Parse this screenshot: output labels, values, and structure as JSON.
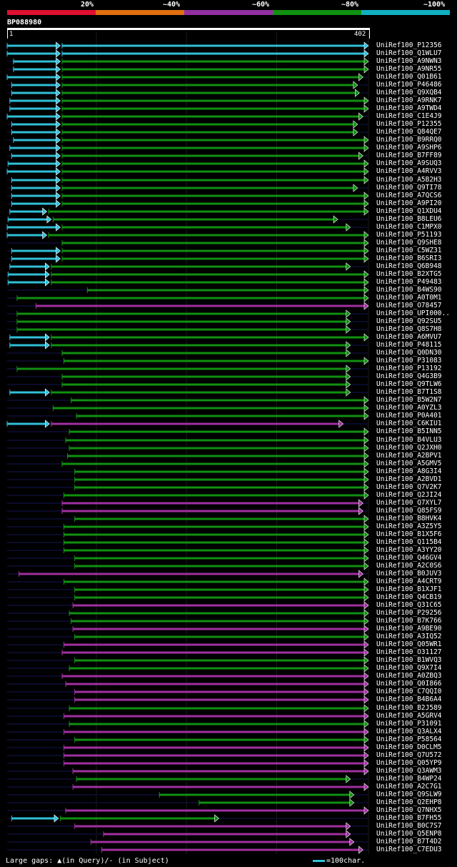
{
  "legend": {
    "segments": [
      {
        "label": "20%",
        "color": "#e01030"
      },
      {
        "label": "~40%",
        "color": "#e07010"
      },
      {
        "label": "~60%",
        "color": "#9030a0"
      },
      {
        "label": "~80%",
        "color": "#109010"
      },
      {
        "label": "~100%",
        "color": "#10b0c0"
      }
    ]
  },
  "query": {
    "id": "BP088980",
    "start_label": "1",
    "end_label": "402",
    "length": 402
  },
  "colors": {
    "identity100": "#30c0d8",
    "identity80": "#109010",
    "identity60": "#a030a0",
    "gap": "#0a0a2a",
    "markerYellow": "#f0f080"
  },
  "hits": [
    {
      "name": "UniRef100_P12356",
      "segs": [
        [
          1,
          60,
          "c"
        ],
        [
          62,
          402,
          "c"
        ]
      ]
    },
    {
      "name": "UniRef100_Q1WLU7",
      "segs": [
        [
          1,
          60,
          "c"
        ],
        [
          62,
          402,
          "c"
        ]
      ]
    },
    {
      "name": "UniRef100_A9NWN3",
      "segs": [
        [
          8,
          60,
          "c"
        ],
        [
          62,
          402,
          "g"
        ]
      ]
    },
    {
      "name": "UniRef100_A9NR55",
      "segs": [
        [
          8,
          60,
          "c"
        ],
        [
          62,
          402,
          "g"
        ]
      ]
    },
    {
      "name": "UniRef100_Q01B61",
      "segs": [
        [
          1,
          60,
          "c"
        ],
        [
          62,
          396,
          "g"
        ]
      ]
    },
    {
      "name": "UniRef100_P46486",
      "segs": [
        [
          6,
          60,
          "c"
        ],
        [
          62,
          390,
          "g"
        ]
      ]
    },
    {
      "name": "UniRef100_Q9XQB4",
      "segs": [
        [
          6,
          60,
          "c"
        ],
        [
          62,
          392,
          "g"
        ]
      ]
    },
    {
      "name": "UniRef100_A9RNK7",
      "segs": [
        [
          4,
          60,
          "c"
        ],
        [
          62,
          402,
          "g"
        ]
      ]
    },
    {
      "name": "UniRef100_A9TWD4",
      "segs": [
        [
          4,
          60,
          "c"
        ],
        [
          62,
          402,
          "g"
        ]
      ]
    },
    {
      "name": "UniRef100_C1E4J9",
      "segs": [
        [
          1,
          60,
          "c"
        ],
        [
          62,
          396,
          "g"
        ]
      ]
    },
    {
      "name": "UniRef100_P12355",
      "segs": [
        [
          6,
          60,
          "c"
        ],
        [
          62,
          390,
          "g"
        ]
      ]
    },
    {
      "name": "UniRef100_Q84QE7",
      "segs": [
        [
          6,
          60,
          "c"
        ],
        [
          62,
          390,
          "g"
        ]
      ]
    },
    {
      "name": "UniRef100_B9RRQ0",
      "segs": [
        [
          8,
          60,
          "c"
        ],
        [
          62,
          402,
          "g"
        ]
      ]
    },
    {
      "name": "UniRef100_A9SHP6",
      "segs": [
        [
          4,
          60,
          "c"
        ],
        [
          62,
          402,
          "g"
        ]
      ]
    },
    {
      "name": "UniRef100_B7FF89",
      "segs": [
        [
          6,
          60,
          "c"
        ],
        [
          62,
          396,
          "g"
        ]
      ]
    },
    {
      "name": "UniRef100_A9SUQ3",
      "segs": [
        [
          2,
          60,
          "c"
        ],
        [
          62,
          402,
          "g"
        ]
      ]
    },
    {
      "name": "UniRef100_A4RVV3",
      "segs": [
        [
          1,
          60,
          "c"
        ],
        [
          62,
          402,
          "g"
        ]
      ]
    },
    {
      "name": "UniRef100_A5B2H3",
      "segs": [
        [
          6,
          60,
          "c"
        ],
        [
          62,
          402,
          "g"
        ]
      ]
    },
    {
      "name": "UniRef100_Q9TI78",
      "segs": [
        [
          6,
          60,
          "c"
        ],
        [
          62,
          390,
          "g"
        ]
      ]
    },
    {
      "name": "UniRef100_A7QCS6",
      "segs": [
        [
          6,
          60,
          "c"
        ],
        [
          62,
          402,
          "g"
        ]
      ]
    },
    {
      "name": "UniRef100_A9PI20",
      "segs": [
        [
          6,
          60,
          "c"
        ],
        [
          62,
          402,
          "g"
        ]
      ]
    },
    {
      "name": "UniRef100_Q1XDU4",
      "segs": [
        [
          4,
          45,
          "c"
        ],
        [
          47,
          402,
          "g"
        ]
      ]
    },
    {
      "name": "UniRef100_B8LEU6",
      "segs": [
        [
          2,
          50,
          "c"
        ],
        [
          52,
          368,
          "g"
        ]
      ]
    },
    {
      "name": "UniRef100_C1MPX0",
      "segs": [
        [
          1,
          60,
          "c"
        ],
        [
          62,
          382,
          "g"
        ]
      ]
    },
    {
      "name": "UniRef100_P51193",
      "segs": [
        [
          1,
          45,
          "c"
        ],
        [
          47,
          402,
          "g"
        ]
      ]
    },
    {
      "name": "UniRef100_Q9SHE8",
      "segs": [
        [
          62,
          402,
          "g"
        ]
      ]
    },
    {
      "name": "UniRef100_C5WZ31",
      "segs": [
        [
          6,
          60,
          "c"
        ],
        [
          62,
          402,
          "g"
        ]
      ]
    },
    {
      "name": "UniRef100_B6SRI3",
      "segs": [
        [
          6,
          60,
          "c"
        ],
        [
          62,
          402,
          "g"
        ]
      ]
    },
    {
      "name": "UniRef100_Q6B948",
      "segs": [
        [
          4,
          48,
          "c"
        ],
        [
          50,
          382,
          "g"
        ]
      ]
    },
    {
      "name": "UniRef100_B2XTG5",
      "segs": [
        [
          2,
          48,
          "c"
        ],
        [
          50,
          402,
          "g"
        ]
      ]
    },
    {
      "name": "UniRef100_P49483",
      "segs": [
        [
          2,
          48,
          "c"
        ],
        [
          50,
          402,
          "g"
        ]
      ]
    },
    {
      "name": "UniRef100_B4WS90",
      "segs": [
        [
          90,
          402,
          "g"
        ]
      ]
    },
    {
      "name": "UniRef100_A0T0M1",
      "segs": [
        [
          12,
          402,
          "g"
        ]
      ]
    },
    {
      "name": "UniRef100_O78457",
      "segs": [
        [
          33,
          402,
          "m"
        ]
      ]
    },
    {
      "name": "UniRef100_UPI000..",
      "segs": [
        [
          12,
          382,
          "g"
        ]
      ]
    },
    {
      "name": "UniRef100_Q92SU5",
      "segs": [
        [
          12,
          382,
          "g"
        ]
      ]
    },
    {
      "name": "UniRef100_Q8S7H8",
      "segs": [
        [
          12,
          382,
          "g"
        ]
      ]
    },
    {
      "name": "UniRef100_A6MVU7",
      "segs": [
        [
          4,
          48,
          "c"
        ],
        [
          50,
          402,
          "g"
        ]
      ]
    },
    {
      "name": "UniRef100_P48115",
      "segs": [
        [
          4,
          48,
          "c"
        ],
        [
          50,
          382,
          "g"
        ]
      ]
    },
    {
      "name": "UniRef100_Q0DN30",
      "segs": [
        [
          62,
          382,
          "g"
        ]
      ]
    },
    {
      "name": "UniRef100_P31083",
      "segs": [
        [
          64,
          402,
          "g"
        ]
      ]
    },
    {
      "name": "UniRef100_P13192",
      "segs": [
        [
          12,
          382,
          "g"
        ]
      ]
    },
    {
      "name": "UniRef100_Q4G3B9",
      "segs": [
        [
          62,
          382,
          "g"
        ]
      ]
    },
    {
      "name": "UniRef100_Q9TLW6",
      "segs": [
        [
          62,
          382,
          "g"
        ]
      ]
    },
    {
      "name": "UniRef100_B7T1S8",
      "segs": [
        [
          4,
          48,
          "c"
        ],
        [
          50,
          382,
          "g"
        ]
      ]
    },
    {
      "name": "UniRef100_B5W2N7",
      "segs": [
        [
          72,
          402,
          "g"
        ]
      ]
    },
    {
      "name": "UniRef100_A0YZL3",
      "segs": [
        [
          52,
          402,
          "g"
        ]
      ]
    },
    {
      "name": "UniRef100_P0A401",
      "segs": [
        [
          78,
          402,
          "g"
        ]
      ]
    },
    {
      "name": "UniRef100_C6KIU1",
      "segs": [
        [
          1,
          48,
          "c"
        ],
        [
          50,
          374,
          "m"
        ]
      ]
    },
    {
      "name": "UniRef100_B5INN5",
      "segs": [
        [
          70,
          402,
          "g"
        ]
      ]
    },
    {
      "name": "UniRef100_B4VLU3",
      "segs": [
        [
          66,
          402,
          "g"
        ]
      ]
    },
    {
      "name": "UniRef100_Q2JXH0",
      "segs": [
        [
          70,
          402,
          "g"
        ]
      ]
    },
    {
      "name": "UniRef100_A2BPV1",
      "segs": [
        [
          68,
          402,
          "g"
        ]
      ]
    },
    {
      "name": "UniRef100_A5GMV5",
      "segs": [
        [
          62,
          402,
          "g"
        ]
      ]
    },
    {
      "name": "UniRef100_A8G3I4",
      "segs": [
        [
          76,
          402,
          "g"
        ]
      ]
    },
    {
      "name": "UniRef100_A2BVD1",
      "segs": [
        [
          76,
          402,
          "g"
        ]
      ]
    },
    {
      "name": "UniRef100_Q7V2K7",
      "segs": [
        [
          76,
          402,
          "g"
        ]
      ]
    },
    {
      "name": "UniRef100_Q2JI24",
      "segs": [
        [
          64,
          402,
          "g"
        ]
      ]
    },
    {
      "name": "UniRef100_Q7XYL7",
      "segs": [
        [
          62,
          396,
          "m"
        ]
      ]
    },
    {
      "name": "UniRef100_Q85FS9",
      "segs": [
        [
          62,
          396,
          "m"
        ]
      ]
    },
    {
      "name": "UniRef100_B8HVK4",
      "segs": [
        [
          76,
          402,
          "g"
        ]
      ]
    },
    {
      "name": "UniRef100_A3Z5Y5",
      "segs": [
        [
          64,
          402,
          "g"
        ]
      ]
    },
    {
      "name": "UniRef100_B1X5F6",
      "segs": [
        [
          64,
          402,
          "g"
        ]
      ]
    },
    {
      "name": "UniRef100_Q115B4",
      "segs": [
        [
          64,
          402,
          "g"
        ]
      ]
    },
    {
      "name": "UniRef100_A3YY20",
      "segs": [
        [
          64,
          402,
          "g"
        ]
      ]
    },
    {
      "name": "UniRef100_Q46GV4",
      "segs": [
        [
          76,
          402,
          "g"
        ]
      ]
    },
    {
      "name": "UniRef100_A2C0S6",
      "segs": [
        [
          76,
          402,
          "g"
        ]
      ]
    },
    {
      "name": "UniRef100_B0JUV3",
      "segs": [
        [
          14,
          396,
          "m"
        ]
      ]
    },
    {
      "name": "UniRef100_A4CRT9",
      "segs": [
        [
          64,
          402,
          "g"
        ]
      ]
    },
    {
      "name": "UniRef100_B1XJF1",
      "segs": [
        [
          76,
          402,
          "g"
        ]
      ]
    },
    {
      "name": "UniRef100_Q4CB19",
      "segs": [
        [
          76,
          402,
          "g"
        ]
      ]
    },
    {
      "name": "UniRef100_Q31C65",
      "segs": [
        [
          74,
          402,
          "m"
        ]
      ]
    },
    {
      "name": "UniRef100_P29256",
      "segs": [
        [
          70,
          402,
          "g"
        ]
      ]
    },
    {
      "name": "UniRef100_B7K766",
      "segs": [
        [
          72,
          402,
          "g"
        ]
      ]
    },
    {
      "name": "UniRef100_A9BE90",
      "segs": [
        [
          74,
          402,
          "m"
        ]
      ]
    },
    {
      "name": "UniRef100_A3IQ52",
      "segs": [
        [
          76,
          402,
          "g"
        ]
      ]
    },
    {
      "name": "UniRef100_Q05WR1",
      "segs": [
        [
          64,
          402,
          "m"
        ]
      ]
    },
    {
      "name": "UniRef100_O31127",
      "segs": [
        [
          62,
          402,
          "m"
        ]
      ]
    },
    {
      "name": "UniRef100_B1WVQ3",
      "segs": [
        [
          76,
          402,
          "g"
        ]
      ]
    },
    {
      "name": "UniRef100_Q9X7I4",
      "segs": [
        [
          70,
          402,
          "g"
        ]
      ]
    },
    {
      "name": "UniRef100_A0ZBQ3",
      "segs": [
        [
          62,
          402,
          "m"
        ]
      ]
    },
    {
      "name": "UniRef100_Q0I866",
      "segs": [
        [
          66,
          402,
          "m"
        ]
      ]
    },
    {
      "name": "UniRef100_C7QQI0",
      "segs": [
        [
          76,
          402,
          "m"
        ]
      ]
    },
    {
      "name": "UniRef100_B4B6A4",
      "segs": [
        [
          76,
          402,
          "m"
        ]
      ]
    },
    {
      "name": "UniRef100_B2J589",
      "segs": [
        [
          70,
          402,
          "g"
        ]
      ]
    },
    {
      "name": "UniRef100_A5GRV4",
      "segs": [
        [
          64,
          402,
          "m"
        ]
      ]
    },
    {
      "name": "UniRef100_P31091",
      "segs": [
        [
          70,
          402,
          "g"
        ]
      ]
    },
    {
      "name": "UniRef100_Q3ALX4",
      "segs": [
        [
          64,
          402,
          "m"
        ]
      ]
    },
    {
      "name": "UniRef100_P58564",
      "segs": [
        [
          76,
          402,
          "g"
        ]
      ]
    },
    {
      "name": "UniRef100_D0CLM5",
      "segs": [
        [
          64,
          402,
          "m"
        ]
      ]
    },
    {
      "name": "UniRef100_Q7U572",
      "segs": [
        [
          64,
          402,
          "m"
        ]
      ]
    },
    {
      "name": "UniRef100_Q05YP9",
      "segs": [
        [
          64,
          402,
          "m"
        ]
      ]
    },
    {
      "name": "UniRef100_Q3AWM3",
      "segs": [
        [
          74,
          402,
          "m"
        ]
      ]
    },
    {
      "name": "UniRef100_B4WP24",
      "segs": [
        [
          78,
          382,
          "g"
        ]
      ]
    },
    {
      "name": "UniRef100_A2C7G1",
      "segs": [
        [
          74,
          402,
          "m"
        ]
      ]
    },
    {
      "name": "UniRef100_Q9SLW9",
      "segs": [
        [
          170,
          386,
          "g"
        ]
      ]
    },
    {
      "name": "UniRef100_Q2EHP8",
      "segs": [
        [
          214,
          386,
          "g"
        ]
      ]
    },
    {
      "name": "UniRef100_Q7NHX5",
      "segs": [
        [
          66,
          402,
          "m"
        ]
      ]
    },
    {
      "name": "UniRef100_B7FH55",
      "segs": [
        [
          6,
          58,
          "c"
        ],
        [
          60,
          236,
          "g"
        ]
      ]
    },
    {
      "name": "UniRef100_B0C7S7",
      "segs": [
        [
          76,
          382,
          "m"
        ]
      ]
    },
    {
      "name": "UniRef100_Q5ENP8",
      "segs": [
        [
          108,
          382,
          "m"
        ]
      ]
    },
    {
      "name": "UniRef100_B7T4D2",
      "segs": [
        [
          94,
          386,
          "m"
        ]
      ]
    },
    {
      "name": "UniRef100_C7EDU3",
      "segs": [
        [
          106,
          396,
          "m"
        ]
      ]
    }
  ],
  "footer": {
    "gaps_text": "Large gaps: ▲(in Query)/- (in Subject)",
    "scale_text": "=100char."
  }
}
